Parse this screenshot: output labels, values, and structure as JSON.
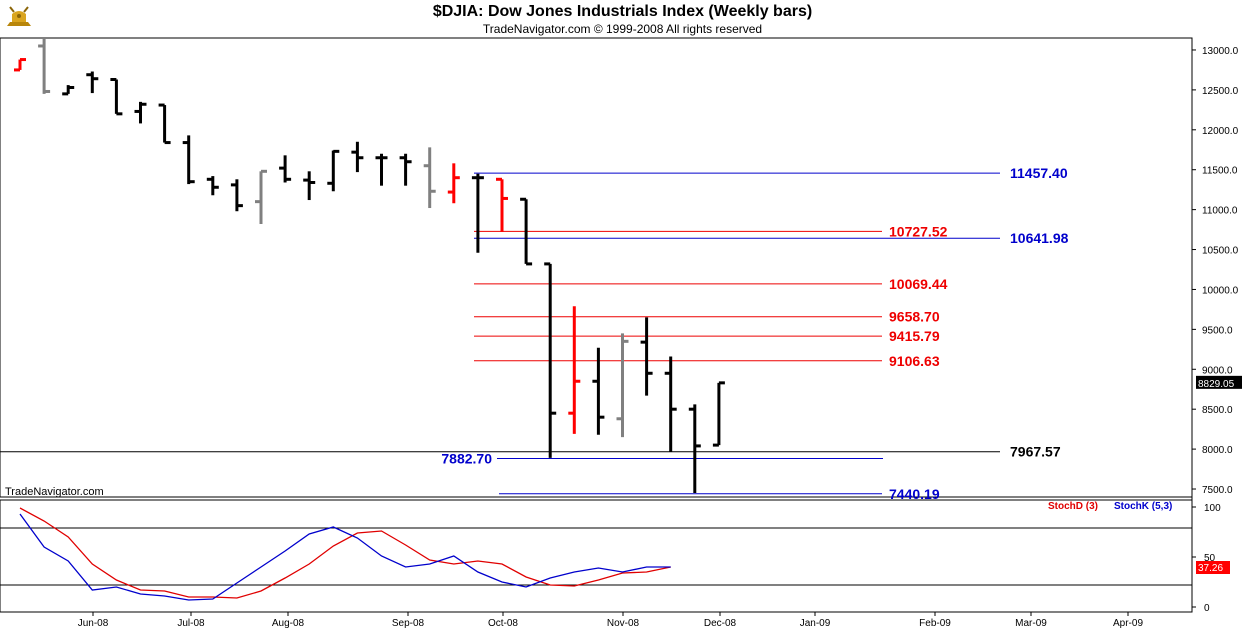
{
  "header": {
    "title": "$DJIA:  Dow Jones Industrials Index  (Weekly bars)",
    "subtitle": "TradeNavigator.com © 1999-2008 All rights reserved",
    "watermark": "TradeNavigator.com",
    "logo_icon": "bull-trophy-logo"
  },
  "colors": {
    "up": "#000000",
    "down_red": "#ff0000",
    "gray": "#808080",
    "blue": "#0000cc",
    "red": "#ee0000",
    "stochD": "#e00000",
    "stochK": "#0000cc"
  },
  "chart_data": [
    {
      "type": "ohlc",
      "title": "$DJIA:  Dow Jones Industrials Index  (Weekly bars)",
      "x_axis_labels": [
        "Jun-08",
        "Jul-08",
        "Aug-08",
        "Sep-08",
        "Oct-08",
        "Nov-08",
        "Dec-08",
        "Jan-09",
        "Feb-09",
        "Mar-09",
        "Apr-09"
      ],
      "y_ticks": [
        "13000.0",
        "12500.0",
        "12000.0",
        "11500.0",
        "11000.0",
        "10500.0",
        "10000.0",
        "9500.0",
        "9000.0",
        "8500.0",
        "8000.0",
        "7500.0"
      ],
      "ylim": [
        7400,
        13150
      ],
      "last_price_label": "8829.05",
      "bars": [
        {
          "open": 12750,
          "high": 12880,
          "low": 12750,
          "close": 12880,
          "color": "red"
        },
        {
          "open": 13050,
          "high": 13150,
          "low": 12450,
          "close": 12480,
          "color": "gray"
        },
        {
          "open": 12450,
          "high": 12560,
          "low": 12450,
          "close": 12530,
          "color": "black"
        },
        {
          "open": 12690,
          "high": 12730,
          "low": 12460,
          "close": 12640,
          "color": "black"
        },
        {
          "open": 12630,
          "high": 12630,
          "low": 12200,
          "close": 12200,
          "color": "black"
        },
        {
          "open": 12230,
          "high": 12350,
          "low": 12080,
          "close": 12320,
          "color": "black"
        },
        {
          "open": 12310,
          "high": 12310,
          "low": 11840,
          "close": 11840,
          "color": "black"
        },
        {
          "open": 11840,
          "high": 11930,
          "low": 11320,
          "close": 11350,
          "color": "black"
        },
        {
          "open": 11380,
          "high": 11420,
          "low": 11180,
          "close": 11280,
          "color": "black"
        },
        {
          "open": 11310,
          "high": 11380,
          "low": 10980,
          "close": 11050,
          "color": "black"
        },
        {
          "open": 11100,
          "high": 11480,
          "low": 10820,
          "close": 11480,
          "color": "gray"
        },
        {
          "open": 11520,
          "high": 11680,
          "low": 11340,
          "close": 11380,
          "color": "black"
        },
        {
          "open": 11370,
          "high": 11480,
          "low": 11120,
          "close": 11340,
          "color": "black"
        },
        {
          "open": 11330,
          "high": 11740,
          "low": 11230,
          "close": 11730,
          "color": "black"
        },
        {
          "open": 11720,
          "high": 11850,
          "low": 11470,
          "close": 11650,
          "color": "black"
        },
        {
          "open": 11650,
          "high": 11700,
          "low": 11300,
          "close": 11650,
          "color": "black"
        },
        {
          "open": 11650,
          "high": 11700,
          "low": 11300,
          "close": 11600,
          "color": "black"
        },
        {
          "open": 11550,
          "high": 11780,
          "low": 11020,
          "close": 11230,
          "color": "gray"
        },
        {
          "open": 11220,
          "high": 11580,
          "low": 11080,
          "close": 11400,
          "color": "red"
        },
        {
          "open": 11400,
          "high": 11450,
          "low": 10460,
          "close": 11400,
          "color": "black"
        },
        {
          "open": 11380,
          "high": 11380,
          "low": 10720,
          "close": 11140,
          "color": "red"
        },
        {
          "open": 11130,
          "high": 11130,
          "low": 10320,
          "close": 10320,
          "color": "black"
        },
        {
          "open": 10320,
          "high": 10320,
          "low": 7890,
          "close": 8450,
          "color": "black"
        },
        {
          "open": 8450,
          "high": 9790,
          "low": 8190,
          "close": 8850,
          "color": "red"
        },
        {
          "open": 8850,
          "high": 9270,
          "low": 8180,
          "close": 8400,
          "color": "black"
        },
        {
          "open": 8380,
          "high": 9450,
          "low": 8150,
          "close": 9350,
          "color": "gray"
        },
        {
          "open": 9340,
          "high": 9650,
          "low": 8670,
          "close": 8950,
          "color": "black"
        },
        {
          "open": 8950,
          "high": 9160,
          "low": 7970,
          "close": 8500,
          "color": "black"
        },
        {
          "open": 8500,
          "high": 8560,
          "low": 7450,
          "close": 8040,
          "color": "black"
        },
        {
          "open": 8050,
          "high": 8830,
          "low": 8050,
          "close": 8830,
          "color": "black"
        }
      ],
      "levels": [
        {
          "value": 11457.4,
          "label": "11457.40",
          "color": "blue"
        },
        {
          "value": 10727.52,
          "label": "10727.52",
          "color": "red"
        },
        {
          "value": 10641.98,
          "label": "10641.98",
          "color": "blue"
        },
        {
          "value": 10069.44,
          "label": "10069.44",
          "color": "red"
        },
        {
          "value": 9658.7,
          "label": "9658.70",
          "color": "red"
        },
        {
          "value": 9415.79,
          "label": "9415.79",
          "color": "red"
        },
        {
          "value": 9106.63,
          "label": "9106.63",
          "color": "red"
        },
        {
          "value": 7967.57,
          "label": "7967.57",
          "color": "black"
        },
        {
          "value": 7882.7,
          "label": "7882.70",
          "color": "blue"
        },
        {
          "value": 7440.19,
          "label": "7440.19",
          "color": "blue"
        }
      ]
    },
    {
      "type": "line",
      "title": "",
      "ylim": [
        -5,
        107
      ],
      "y_ticks": [
        "100",
        "50",
        "0"
      ],
      "reference_lines": [
        79,
        22
      ],
      "last_value_label": "37.26",
      "series": [
        {
          "name": "StochD (3)",
          "color": "stochD",
          "values": [
            99,
            86,
            70,
            43,
            27,
            17,
            16,
            10,
            10,
            9,
            16,
            29,
            43,
            61,
            74,
            76,
            62,
            47,
            43,
            46,
            43,
            30,
            22,
            21,
            27,
            34,
            35,
            40
          ]
        },
        {
          "name": "StochK (5,3)",
          "color": "stochK",
          "values": [
            93,
            60,
            46,
            17,
            20,
            13,
            11,
            7,
            8,
            24,
            40,
            56,
            73,
            80,
            69,
            51,
            40,
            43,
            51,
            35,
            25,
            20,
            29,
            35,
            39,
            35,
            40,
            40
          ]
        }
      ]
    }
  ]
}
